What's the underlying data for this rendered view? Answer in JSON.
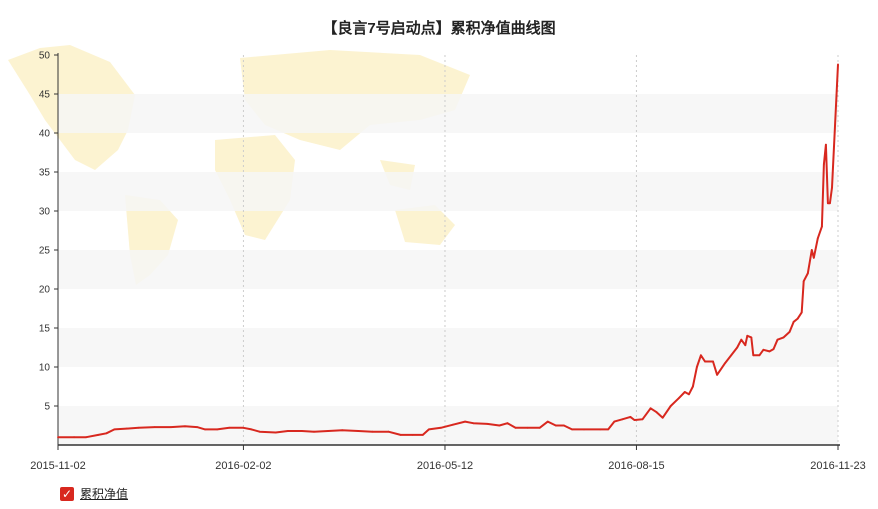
{
  "colors": {
    "line": "#d8281f",
    "band": "#f6f6f6",
    "map": "#fbefc2",
    "axis": "#333333",
    "vgrid": "#cccccc"
  },
  "legend": {
    "label": "累积净值",
    "checked": true,
    "icon": "checkmark-icon"
  },
  "chart_data": {
    "type": "line",
    "title": "【良言7号启动点】累积净值曲线图",
    "xlabel": "",
    "ylabel": "",
    "x_range": [
      "2015-11-02",
      "2016-11-23"
    ],
    "ylim": [
      0,
      50
    ],
    "yticks": [
      5,
      10,
      15,
      20,
      25,
      30,
      35,
      40,
      45,
      50
    ],
    "xticks": [
      "2015-11-02",
      "2016-02-02",
      "2016-05-12",
      "2016-08-15",
      "2016-11-23"
    ],
    "grid": {
      "y": "alternating bands",
      "x": "dashed at tick dates"
    },
    "legend_position": "bottom-left",
    "series": [
      {
        "name": "累积净值",
        "points": [
          [
            "2015-11-02",
            1.0
          ],
          [
            "2015-11-10",
            1.0
          ],
          [
            "2015-11-16",
            1.0
          ],
          [
            "2015-11-22",
            1.3
          ],
          [
            "2015-11-26",
            1.5
          ],
          [
            "2015-11-30",
            2.0
          ],
          [
            "2015-12-06",
            2.1
          ],
          [
            "2015-12-12",
            2.2
          ],
          [
            "2015-12-20",
            2.3
          ],
          [
            "2015-12-28",
            2.3
          ],
          [
            "2016-01-04",
            2.4
          ],
          [
            "2016-01-10",
            2.3
          ],
          [
            "2016-01-14",
            2.0
          ],
          [
            "2016-01-20",
            2.0
          ],
          [
            "2016-01-26",
            2.2
          ],
          [
            "2016-02-02",
            2.2
          ],
          [
            "2016-02-06",
            2.0
          ],
          [
            "2016-02-10",
            1.7
          ],
          [
            "2016-02-18",
            1.6
          ],
          [
            "2016-02-24",
            1.8
          ],
          [
            "2016-03-02",
            1.8
          ],
          [
            "2016-03-08",
            1.7
          ],
          [
            "2016-03-15",
            1.8
          ],
          [
            "2016-03-22",
            1.9
          ],
          [
            "2016-03-30",
            1.8
          ],
          [
            "2016-04-06",
            1.7
          ],
          [
            "2016-04-14",
            1.7
          ],
          [
            "2016-04-20",
            1.3
          ],
          [
            "2016-04-26",
            1.3
          ],
          [
            "2016-05-01",
            1.3
          ],
          [
            "2016-05-04",
            2.0
          ],
          [
            "2016-05-10",
            2.2
          ],
          [
            "2016-05-16",
            2.6
          ],
          [
            "2016-05-22",
            3.0
          ],
          [
            "2016-05-26",
            2.8
          ],
          [
            "2016-06-02",
            2.7
          ],
          [
            "2016-06-08",
            2.5
          ],
          [
            "2016-06-12",
            2.8
          ],
          [
            "2016-06-16",
            2.2
          ],
          [
            "2016-06-22",
            2.2
          ],
          [
            "2016-06-28",
            2.2
          ],
          [
            "2016-07-02",
            3.0
          ],
          [
            "2016-07-06",
            2.5
          ],
          [
            "2016-07-10",
            2.5
          ],
          [
            "2016-07-14",
            2.0
          ],
          [
            "2016-07-20",
            2.0
          ],
          [
            "2016-07-28",
            2.0
          ],
          [
            "2016-08-01",
            2.0
          ],
          [
            "2016-08-04",
            3.0
          ],
          [
            "2016-08-08",
            3.3
          ],
          [
            "2016-08-12",
            3.6
          ],
          [
            "2016-08-14",
            3.2
          ],
          [
            "2016-08-18",
            3.3
          ],
          [
            "2016-08-22",
            4.7
          ],
          [
            "2016-08-25",
            4.2
          ],
          [
            "2016-08-28",
            3.5
          ],
          [
            "2016-09-01",
            5.0
          ],
          [
            "2016-09-05",
            6.0
          ],
          [
            "2016-09-08",
            6.8
          ],
          [
            "2016-09-10",
            6.5
          ],
          [
            "2016-09-12",
            7.5
          ],
          [
            "2016-09-14",
            10.0
          ],
          [
            "2016-09-16",
            11.5
          ],
          [
            "2016-09-18",
            10.7
          ],
          [
            "2016-09-22",
            10.7
          ],
          [
            "2016-09-24",
            9.0
          ],
          [
            "2016-09-28",
            10.5
          ],
          [
            "2016-10-01",
            11.5
          ],
          [
            "2016-10-04",
            12.5
          ],
          [
            "2016-10-06",
            13.5
          ],
          [
            "2016-10-08",
            12.8
          ],
          [
            "2016-10-09",
            14.0
          ],
          [
            "2016-10-11",
            13.8
          ],
          [
            "2016-10-12",
            11.5
          ],
          [
            "2016-10-15",
            11.5
          ],
          [
            "2016-10-17",
            12.2
          ],
          [
            "2016-10-20",
            12.0
          ],
          [
            "2016-10-22",
            12.3
          ],
          [
            "2016-10-24",
            13.5
          ],
          [
            "2016-10-27",
            13.8
          ],
          [
            "2016-10-30",
            14.5
          ],
          [
            "2016-11-01",
            15.8
          ],
          [
            "2016-11-03",
            16.2
          ],
          [
            "2016-11-05",
            17.0
          ],
          [
            "2016-11-06",
            21.0
          ],
          [
            "2016-11-08",
            22.0
          ],
          [
            "2016-11-10",
            25.0
          ],
          [
            "2016-11-11",
            24.0
          ],
          [
            "2016-11-13",
            26.5
          ],
          [
            "2016-11-15",
            28.0
          ],
          [
            "2016-11-16",
            36.0
          ],
          [
            "2016-11-17",
            38.5
          ],
          [
            "2016-11-18",
            31.0
          ],
          [
            "2016-11-19",
            31.0
          ],
          [
            "2016-11-20",
            33.0
          ],
          [
            "2016-11-23",
            48.8
          ]
        ]
      }
    ]
  }
}
